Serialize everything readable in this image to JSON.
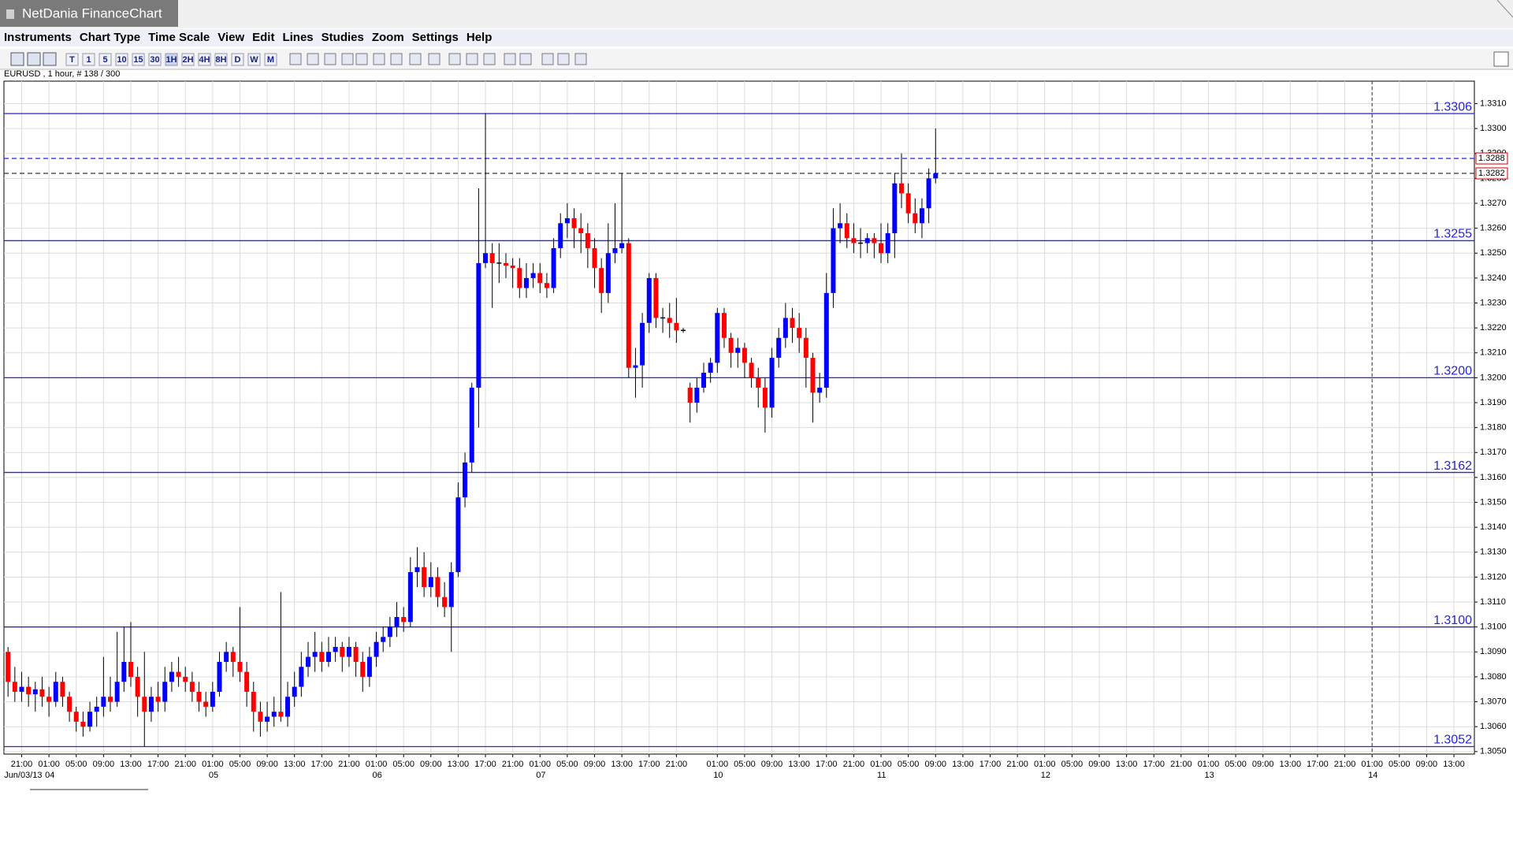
{
  "window": {
    "title": "NetDania FinanceChart"
  },
  "menu": [
    "Instruments",
    "Chart Type",
    "Time Scale",
    "View",
    "Edit",
    "Lines",
    "Studies",
    "Zoom",
    "Settings",
    "Help"
  ],
  "toolbar": [
    "T",
    "1",
    "5",
    "10",
    "15",
    "30",
    "1H",
    "2H",
    "4H",
    "8H",
    "D",
    "W",
    "M"
  ],
  "chart_data": {
    "type": "candlestick",
    "title": "EURUSD , 1 hour, # 138 / 300",
    "up_color": "#0000ff",
    "down_color": "#ff0000",
    "grid": true,
    "candles": [
      [
        1.309,
        1.3092,
        1.3072,
        1.3078
      ],
      [
        1.3078,
        1.3084,
        1.307,
        1.3074
      ],
      [
        1.3074,
        1.3082,
        1.307,
        1.3076
      ],
      [
        1.3076,
        1.308,
        1.3068,
        1.3073
      ],
      [
        1.3073,
        1.3078,
        1.3066,
        1.3075
      ],
      [
        1.3075,
        1.308,
        1.3068,
        1.3072
      ],
      [
        1.3072,
        1.3076,
        1.3064,
        1.307
      ],
      [
        1.307,
        1.3082,
        1.3068,
        1.3078
      ],
      [
        1.3078,
        1.308,
        1.3068,
        1.3072
      ],
      [
        1.3072,
        1.3074,
        1.3062,
        1.3066
      ],
      [
        1.3066,
        1.3068,
        1.3058,
        1.3062
      ],
      [
        1.3062,
        1.3066,
        1.3056,
        1.306
      ],
      [
        1.306,
        1.307,
        1.3058,
        1.3066
      ],
      [
        1.3066,
        1.3072,
        1.306,
        1.3068
      ],
      [
        1.3068,
        1.3088,
        1.3064,
        1.3072
      ],
      [
        1.3072,
        1.308,
        1.3066,
        1.307
      ],
      [
        1.307,
        1.3098,
        1.3068,
        1.3078
      ],
      [
        1.3078,
        1.31,
        1.3074,
        1.3086
      ],
      [
        1.3086,
        1.3102,
        1.3076,
        1.308
      ],
      [
        1.308,
        1.3084,
        1.3064,
        1.3072
      ],
      [
        1.3072,
        1.309,
        1.3052,
        1.3066
      ],
      [
        1.3066,
        1.3076,
        1.3062,
        1.3072
      ],
      [
        1.3072,
        1.3078,
        1.3066,
        1.307
      ],
      [
        1.307,
        1.3084,
        1.3066,
        1.3078
      ],
      [
        1.3078,
        1.3086,
        1.3074,
        1.3082
      ],
      [
        1.3082,
        1.3088,
        1.3076,
        1.308
      ],
      [
        1.308,
        1.3084,
        1.3074,
        1.3078
      ],
      [
        1.3078,
        1.3082,
        1.307,
        1.3074
      ],
      [
        1.3074,
        1.3078,
        1.3066,
        1.307
      ],
      [
        1.307,
        1.3074,
        1.3064,
        1.3068
      ],
      [
        1.3068,
        1.3078,
        1.3066,
        1.3074
      ],
      [
        1.3074,
        1.309,
        1.3072,
        1.3086
      ],
      [
        1.3086,
        1.3094,
        1.3082,
        1.309
      ],
      [
        1.309,
        1.3092,
        1.308,
        1.3086
      ],
      [
        1.3086,
        1.3108,
        1.3078,
        1.3082
      ],
      [
        1.3082,
        1.3086,
        1.3068,
        1.3074
      ],
      [
        1.3074,
        1.3078,
        1.3058,
        1.3066
      ],
      [
        1.3066,
        1.307,
        1.3056,
        1.3062
      ],
      [
        1.3062,
        1.307,
        1.3058,
        1.3064
      ],
      [
        1.3064,
        1.3072,
        1.306,
        1.3066
      ],
      [
        1.3066,
        1.3114,
        1.3062,
        1.3064
      ],
      [
        1.3064,
        1.3078,
        1.306,
        1.3072
      ],
      [
        1.3072,
        1.3082,
        1.3068,
        1.3076
      ],
      [
        1.3076,
        1.309,
        1.3072,
        1.3084
      ],
      [
        1.3084,
        1.3094,
        1.308,
        1.3088
      ],
      [
        1.3088,
        1.3098,
        1.3082,
        1.309
      ],
      [
        1.309,
        1.3094,
        1.3082,
        1.3086
      ],
      [
        1.3086,
        1.3096,
        1.3084,
        1.309
      ],
      [
        1.309,
        1.3096,
        1.3086,
        1.3092
      ],
      [
        1.3092,
        1.3094,
        1.3082,
        1.3088
      ],
      [
        1.3088,
        1.3096,
        1.3084,
        1.3092
      ],
      [
        1.3092,
        1.3094,
        1.308,
        1.3086
      ],
      [
        1.3086,
        1.309,
        1.3074,
        1.308
      ],
      [
        1.308,
        1.3092,
        1.3076,
        1.3088
      ],
      [
        1.3088,
        1.3098,
        1.3084,
        1.3094
      ],
      [
        1.3094,
        1.31,
        1.309,
        1.3096
      ],
      [
        1.3096,
        1.3104,
        1.3092,
        1.31
      ],
      [
        1.31,
        1.311,
        1.3096,
        1.3104
      ],
      [
        1.3104,
        1.3108,
        1.3098,
        1.3102
      ],
      [
        1.3102,
        1.3128,
        1.31,
        1.3122
      ],
      [
        1.3122,
        1.3132,
        1.3116,
        1.3124
      ],
      [
        1.3124,
        1.313,
        1.3112,
        1.3116
      ],
      [
        1.3116,
        1.3126,
        1.3112,
        1.312
      ],
      [
        1.312,
        1.3124,
        1.3108,
        1.3112
      ],
      [
        1.3112,
        1.3118,
        1.3104,
        1.3108
      ],
      [
        1.3108,
        1.3126,
        1.309,
        1.3122
      ],
      [
        1.3122,
        1.3158,
        1.312,
        1.3152
      ],
      [
        1.3152,
        1.317,
        1.3148,
        1.3166
      ],
      [
        1.3166,
        1.3198,
        1.3162,
        1.3196
      ],
      [
        1.3196,
        1.3276,
        1.318,
        1.3246
      ],
      [
        1.3246,
        1.3306,
        1.3244,
        1.325
      ],
      [
        1.325,
        1.3254,
        1.3228,
        1.3246
      ],
      [
        1.3246,
        1.3254,
        1.3238,
        1.3246
      ],
      [
        1.3246,
        1.325,
        1.324,
        1.3245
      ],
      [
        1.3245,
        1.3248,
        1.3236,
        1.3244
      ],
      [
        1.3244,
        1.3248,
        1.3232,
        1.3236
      ],
      [
        1.3236,
        1.3246,
        1.3232,
        1.324
      ],
      [
        1.324,
        1.3246,
        1.3236,
        1.3242
      ],
      [
        1.3242,
        1.3246,
        1.3234,
        1.3238
      ],
      [
        1.3238,
        1.3242,
        1.3232,
        1.3236
      ],
      [
        1.3236,
        1.3256,
        1.3234,
        1.3252
      ],
      [
        1.3252,
        1.3266,
        1.3248,
        1.3262
      ],
      [
        1.3262,
        1.327,
        1.3256,
        1.3264
      ],
      [
        1.3264,
        1.3268,
        1.3252,
        1.326
      ],
      [
        1.326,
        1.3266,
        1.325,
        1.3258
      ],
      [
        1.3258,
        1.3262,
        1.3244,
        1.3252
      ],
      [
        1.3252,
        1.3256,
        1.3236,
        1.3244
      ],
      [
        1.3244,
        1.3248,
        1.3226,
        1.3234
      ],
      [
        1.3234,
        1.3262,
        1.323,
        1.325
      ],
      [
        1.325,
        1.327,
        1.3246,
        1.3252
      ],
      [
        1.3252,
        1.3282,
        1.325,
        1.3254
      ],
      [
        1.3254,
        1.3256,
        1.32,
        1.3204
      ],
      [
        1.3204,
        1.3212,
        1.3192,
        1.3205
      ],
      [
        1.3205,
        1.3226,
        1.3196,
        1.3222
      ],
      [
        1.3222,
        1.3242,
        1.3218,
        1.324
      ],
      [
        1.324,
        1.3242,
        1.322,
        1.3224
      ],
      [
        1.3224,
        1.3228,
        1.3218,
        1.3224
      ],
      [
        1.3224,
        1.323,
        1.3216,
        1.3222
      ],
      [
        1.3222,
        1.3232,
        1.3214,
        1.3219
      ],
      [
        1.3219,
        1.322,
        1.3218,
        1.3219
      ],
      [
        1.3196,
        1.3198,
        1.3182,
        1.319
      ],
      [
        1.319,
        1.32,
        1.3186,
        1.3196
      ],
      [
        1.3196,
        1.3206,
        1.3194,
        1.3202
      ],
      [
        1.3202,
        1.3208,
        1.3198,
        1.3206
      ],
      [
        1.3206,
        1.3228,
        1.3202,
        1.3226
      ],
      [
        1.3226,
        1.3228,
        1.3212,
        1.3216
      ],
      [
        1.3216,
        1.3218,
        1.3204,
        1.321
      ],
      [
        1.321,
        1.3216,
        1.3204,
        1.3212
      ],
      [
        1.3212,
        1.3214,
        1.32,
        1.3206
      ],
      [
        1.3206,
        1.3208,
        1.3196,
        1.32
      ],
      [
        1.32,
        1.3204,
        1.3188,
        1.3196
      ],
      [
        1.3196,
        1.32,
        1.3178,
        1.3188
      ],
      [
        1.3188,
        1.3212,
        1.3184,
        1.3208
      ],
      [
        1.3208,
        1.322,
        1.3204,
        1.3216
      ],
      [
        1.3216,
        1.323,
        1.3212,
        1.3224
      ],
      [
        1.3224,
        1.3228,
        1.3214,
        1.322
      ],
      [
        1.322,
        1.3226,
        1.321,
        1.3216
      ],
      [
        1.3216,
        1.322,
        1.3196,
        1.3208
      ],
      [
        1.3208,
        1.321,
        1.3182,
        1.3194
      ],
      [
        1.3194,
        1.3202,
        1.319,
        1.3196
      ],
      [
        1.3196,
        1.3242,
        1.3192,
        1.3234
      ],
      [
        1.3234,
        1.3268,
        1.3228,
        1.326
      ],
      [
        1.326,
        1.327,
        1.3254,
        1.3262
      ],
      [
        1.3262,
        1.3266,
        1.3252,
        1.3256
      ],
      [
        1.3256,
        1.3262,
        1.325,
        1.3254
      ],
      [
        1.3254,
        1.326,
        1.3248,
        1.3254
      ],
      [
        1.3254,
        1.3258,
        1.325,
        1.3256
      ],
      [
        1.3256,
        1.3258,
        1.3248,
        1.3254
      ],
      [
        1.3254,
        1.3262,
        1.3246,
        1.325
      ],
      [
        1.325,
        1.3262,
        1.3246,
        1.3258
      ],
      [
        1.3258,
        1.3282,
        1.3248,
        1.3278
      ],
      [
        1.3278,
        1.329,
        1.3268,
        1.3274
      ],
      [
        1.3274,
        1.3278,
        1.3262,
        1.3266
      ],
      [
        1.3266,
        1.3272,
        1.3258,
        1.3262
      ],
      [
        1.3262,
        1.3272,
        1.3256,
        1.3268
      ],
      [
        1.3268,
        1.3284,
        1.3262,
        1.328
      ],
      [
        1.328,
        1.33,
        1.3278,
        1.3282
      ]
    ],
    "xlim": [
      -0.6,
      215
    ],
    "xticks": [
      {
        "value": 2,
        "label": "21:00"
      },
      {
        "value": 6,
        "label": "01:00"
      },
      {
        "value": 10,
        "label": "05:00"
      },
      {
        "value": 14,
        "label": "09:00"
      },
      {
        "value": 18,
        "label": "13:00"
      },
      {
        "value": 22,
        "label": "17:00"
      },
      {
        "value": 26,
        "label": "21:00"
      },
      {
        "value": 30,
        "label": "01:00"
      },
      {
        "value": 34,
        "label": "05:00"
      },
      {
        "value": 38,
        "label": "09:00"
      },
      {
        "value": 42,
        "label": "13:00"
      },
      {
        "value": 46,
        "label": "17:00"
      },
      {
        "value": 50,
        "label": "21:00"
      },
      {
        "value": 54,
        "label": "01:00"
      },
      {
        "value": 58,
        "label": "05:00"
      },
      {
        "value": 62,
        "label": "09:00"
      },
      {
        "value": 66,
        "label": "13:00"
      },
      {
        "value": 70,
        "label": "17:00"
      },
      {
        "value": 74,
        "label": "21:00"
      },
      {
        "value": 78,
        "label": "01:00"
      },
      {
        "value": 82,
        "label": "05:00"
      },
      {
        "value": 86,
        "label": "09:00"
      },
      {
        "value": 90,
        "label": "13:00"
      },
      {
        "value": 94,
        "label": "17:00"
      },
      {
        "value": 98,
        "label": "21:00"
      },
      {
        "value": 104,
        "label": "01:00"
      },
      {
        "value": 108,
        "label": "05:00"
      },
      {
        "value": 112,
        "label": "09:00"
      },
      {
        "value": 116,
        "label": "13:00"
      },
      {
        "value": 120,
        "label": "17:00"
      },
      {
        "value": 124,
        "label": "21:00"
      },
      {
        "value": 128,
        "label": "01:00"
      },
      {
        "value": 132,
        "label": "05:00"
      },
      {
        "value": 136,
        "label": "09:00"
      },
      {
        "value": 140,
        "label": "13:00"
      },
      {
        "value": 144,
        "label": "17:00"
      },
      {
        "value": 148,
        "label": "21:00"
      },
      {
        "value": 152,
        "label": "01:00"
      },
      {
        "value": 156,
        "label": "05:00"
      },
      {
        "value": 160,
        "label": "09:00"
      },
      {
        "value": 164,
        "label": "13:00"
      },
      {
        "value": 168,
        "label": "17:00"
      },
      {
        "value": 172,
        "label": "21:00"
      },
      {
        "value": 176,
        "label": "01:00"
      },
      {
        "value": 180,
        "label": "05:00"
      },
      {
        "value": 184,
        "label": "09:00"
      },
      {
        "value": 188,
        "label": "13:00"
      },
      {
        "value": 192,
        "label": "17:00"
      },
      {
        "value": 196,
        "label": "21:00"
      },
      {
        "value": 200,
        "label": "01:00"
      },
      {
        "value": 204,
        "label": "05:00"
      },
      {
        "value": 208,
        "label": "09:00"
      },
      {
        "value": 212,
        "label": "13:00"
      }
    ],
    "date_ticks": [
      {
        "value": 0,
        "label": "Jun/03/13"
      },
      {
        "value": 6,
        "label": "04"
      },
      {
        "value": 30,
        "label": "05"
      },
      {
        "value": 54,
        "label": "06"
      },
      {
        "value": 78,
        "label": "07"
      },
      {
        "value": 104,
        "label": "10"
      },
      {
        "value": 128,
        "label": "11"
      },
      {
        "value": 152,
        "label": "12"
      },
      {
        "value": 176,
        "label": "13"
      },
      {
        "value": 200,
        "label": "14"
      }
    ],
    "ylim": [
      1.3049,
      1.3319
    ],
    "yticks": [
      {
        "value": 1.305,
        "label": "1.3050"
      },
      {
        "value": 1.306,
        "label": "1.3060"
      },
      {
        "value": 1.307,
        "label": "1.3070"
      },
      {
        "value": 1.308,
        "label": "1.3080"
      },
      {
        "value": 1.309,
        "label": "1.3090"
      },
      {
        "value": 1.31,
        "label": "1.3100"
      },
      {
        "value": 1.311,
        "label": "1.3110"
      },
      {
        "value": 1.312,
        "label": "1.3120"
      },
      {
        "value": 1.313,
        "label": "1.3130"
      },
      {
        "value": 1.314,
        "label": "1.3140"
      },
      {
        "value": 1.315,
        "label": "1.3150"
      },
      {
        "value": 1.316,
        "label": "1.3160"
      },
      {
        "value": 1.317,
        "label": "1.3170"
      },
      {
        "value": 1.318,
        "label": "1.3180"
      },
      {
        "value": 1.319,
        "label": "1.3190"
      },
      {
        "value": 1.32,
        "label": "1.3200"
      },
      {
        "value": 1.321,
        "label": "1.3210"
      },
      {
        "value": 1.322,
        "label": "1.3220"
      },
      {
        "value": 1.323,
        "label": "1.3230"
      },
      {
        "value": 1.324,
        "label": "1.3240"
      },
      {
        "value": 1.325,
        "label": "1.3250"
      },
      {
        "value": 1.326,
        "label": "1.3260"
      },
      {
        "value": 1.327,
        "label": "1.3270"
      },
      {
        "value": 1.328,
        "label": "1.3280"
      },
      {
        "value": 1.329,
        "label": "1.3290"
      },
      {
        "value": 1.33,
        "label": "1.3300"
      },
      {
        "value": 1.331,
        "label": "1.3310"
      }
    ],
    "level_color": "#2626d9",
    "levels": [
      1.3306,
      1.3255,
      {
        "value": 1.32,
        "label": "1.3200"
      },
      1.3162,
      {
        "value": 1.31,
        "label": "1.3100"
      },
      1.3052
    ],
    "price_lines": [
      {
        "value": 1.3288,
        "color": "#3333ff"
      },
      {
        "value": 1.3282,
        "color": "#333333"
      }
    ]
  }
}
